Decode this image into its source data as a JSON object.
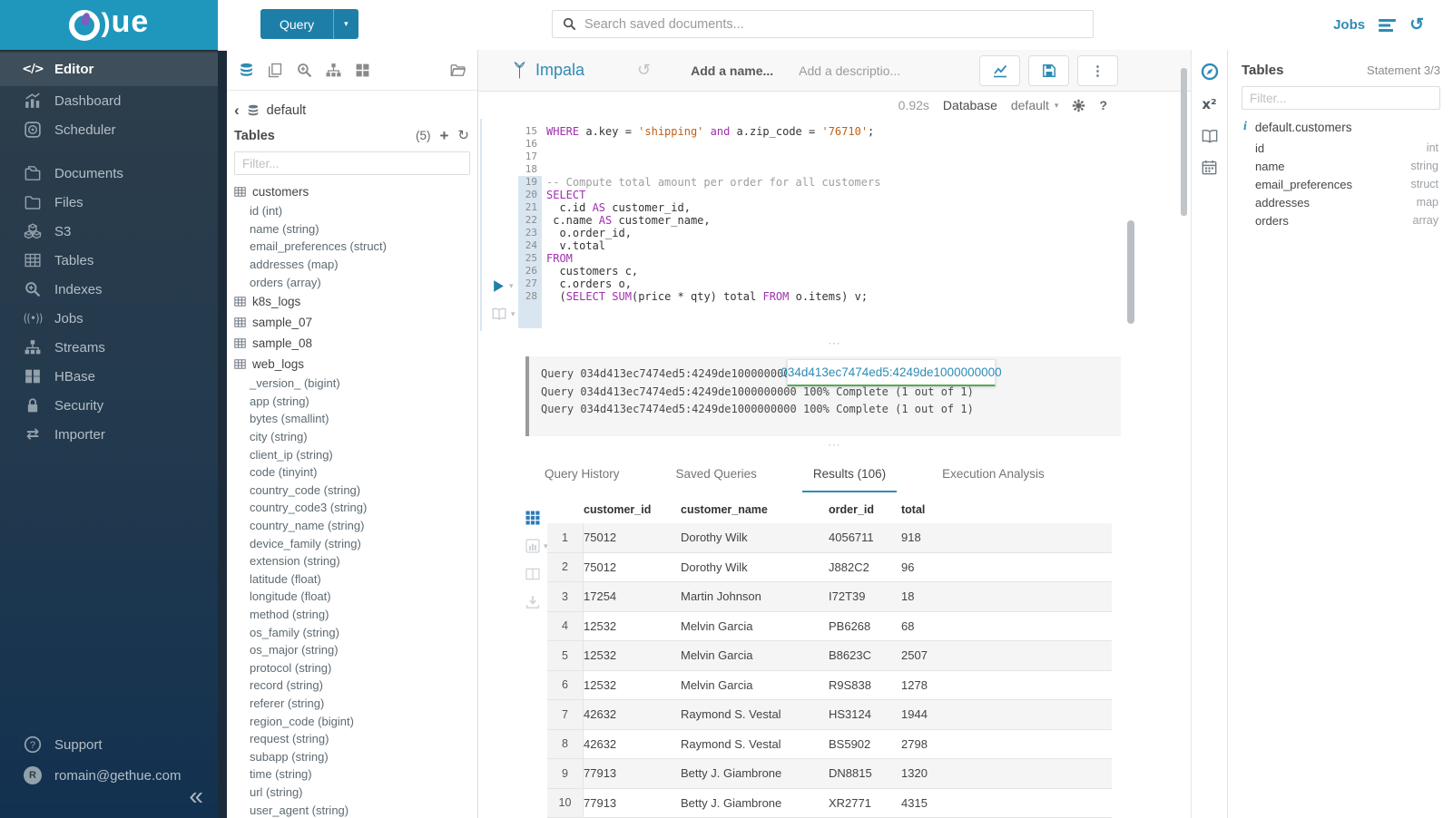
{
  "brand": {
    "band_color": "#1f97bd",
    "logo_text": "ue",
    "logo_paren": ")"
  },
  "sidebar": {
    "items": [
      {
        "label": "Editor",
        "icon": "code-icon",
        "active": true
      },
      {
        "label": "Dashboard",
        "icon": "dashboard-icon"
      },
      {
        "label": "Scheduler",
        "icon": "scheduler-icon",
        "gap_after": true
      },
      {
        "label": "Documents",
        "icon": "documents-icon"
      },
      {
        "label": "Files",
        "icon": "folder-icon"
      },
      {
        "label": "S3",
        "icon": "cubes-icon"
      },
      {
        "label": "Tables",
        "icon": "table-icon"
      },
      {
        "label": "Indexes",
        "icon": "search-plus-icon"
      },
      {
        "label": "Jobs",
        "icon": "broadcast-icon"
      },
      {
        "label": "Streams",
        "icon": "sitemap-icon"
      },
      {
        "label": "HBase",
        "icon": "blocks-icon"
      },
      {
        "label": "Security",
        "icon": "lock-icon"
      },
      {
        "label": "Importer",
        "icon": "transfer-icon"
      }
    ],
    "footer": [
      {
        "label": "Support",
        "icon": "help-icon"
      },
      {
        "label": "romain@gethue.com",
        "icon": "avatar",
        "avatar_letter": "R"
      }
    ],
    "collapse_glyph": "«"
  },
  "topbar": {
    "query_button": "Query",
    "query_caret": "▾",
    "search_placeholder": "Search saved documents...",
    "jobs_label": "Jobs",
    "history_glyph": "↺"
  },
  "left_assist": {
    "toolbar_icons": [
      "database-icon",
      "copy-icon",
      "zoom-plus-icon",
      "sitemap-icon",
      "grid-icon",
      "folder-open-icon"
    ],
    "back_glyph": "‹",
    "db_name": "default",
    "tables_header": "Tables",
    "tables_count": "(5)",
    "add_glyph": "+",
    "refresh_glyph": "↻",
    "filter_placeholder": "Filter...",
    "tree": [
      {
        "name": "customers",
        "kind": "table"
      },
      {
        "name": "id (int)",
        "kind": "column"
      },
      {
        "name": "name (string)",
        "kind": "column"
      },
      {
        "name": "email_preferences (struct)",
        "kind": "column"
      },
      {
        "name": "addresses (map)",
        "kind": "column"
      },
      {
        "name": "orders (array)",
        "kind": "column"
      },
      {
        "name": "k8s_logs",
        "kind": "table"
      },
      {
        "name": "sample_07",
        "kind": "table"
      },
      {
        "name": "sample_08",
        "kind": "table"
      },
      {
        "name": "web_logs",
        "kind": "table"
      },
      {
        "name": "_version_ (bigint)",
        "kind": "column"
      },
      {
        "name": "app (string)",
        "kind": "column"
      },
      {
        "name": "bytes (smallint)",
        "kind": "column"
      },
      {
        "name": "city (string)",
        "kind": "column"
      },
      {
        "name": "client_ip (string)",
        "kind": "column"
      },
      {
        "name": "code (tinyint)",
        "kind": "column"
      },
      {
        "name": "country_code (string)",
        "kind": "column"
      },
      {
        "name": "country_code3 (string)",
        "kind": "column"
      },
      {
        "name": "country_name (string)",
        "kind": "column"
      },
      {
        "name": "device_family (string)",
        "kind": "column"
      },
      {
        "name": "extension (string)",
        "kind": "column"
      },
      {
        "name": "latitude (float)",
        "kind": "column"
      },
      {
        "name": "longitude (float)",
        "kind": "column"
      },
      {
        "name": "method (string)",
        "kind": "column"
      },
      {
        "name": "os_family (string)",
        "kind": "column"
      },
      {
        "name": "os_major (string)",
        "kind": "column"
      },
      {
        "name": "protocol (string)",
        "kind": "column"
      },
      {
        "name": "record (string)",
        "kind": "column"
      },
      {
        "name": "referer (string)",
        "kind": "column"
      },
      {
        "name": "region_code (bigint)",
        "kind": "column"
      },
      {
        "name": "request (string)",
        "kind": "column"
      },
      {
        "name": "subapp (string)",
        "kind": "column"
      },
      {
        "name": "time (string)",
        "kind": "column"
      },
      {
        "name": "url (string)",
        "kind": "column"
      },
      {
        "name": "user_agent (string)",
        "kind": "column"
      }
    ]
  },
  "editor": {
    "engine": "Impala",
    "history_glyph": "↺",
    "name_placeholder": "Add a name...",
    "description_placeholder": "Add a descriptio...",
    "exec_time": "0.92s",
    "database_label": "Database",
    "database_value": "default",
    "db_caret": "▾",
    "help_glyph": "?",
    "kebab_glyph": "⋮",
    "grip_glyph": "⋯",
    "play_caret": "▾",
    "code": [
      {
        "n": "15",
        "hl": false,
        "seg": [
          [
            "k",
            "WHERE"
          ],
          [
            "t",
            " a.key = "
          ],
          [
            "s",
            "'shipping'"
          ],
          [
            "k",
            " and"
          ],
          [
            "t",
            " a.zip_code = "
          ],
          [
            "s",
            "'76710'"
          ],
          [
            "t",
            ";"
          ]
        ]
      },
      {
        "n": "16",
        "hl": false,
        "seg": []
      },
      {
        "n": "17",
        "hl": false,
        "seg": []
      },
      {
        "n": "18",
        "hl": false,
        "seg": []
      },
      {
        "n": "19",
        "hl": true,
        "seg": [
          [
            "c",
            "-- Compute total amount per order for all customers"
          ]
        ]
      },
      {
        "n": "20",
        "hl": true,
        "seg": [
          [
            "k",
            "SELECT"
          ]
        ]
      },
      {
        "n": "21",
        "hl": true,
        "seg": [
          [
            "t",
            "  c.id "
          ],
          [
            "k",
            "AS"
          ],
          [
            "t",
            " customer_id,"
          ]
        ]
      },
      {
        "n": "22",
        "hl": true,
        "seg": [
          [
            "t",
            " c.name "
          ],
          [
            "k",
            "AS"
          ],
          [
            "t",
            " customer_name,"
          ]
        ]
      },
      {
        "n": "23",
        "hl": true,
        "seg": [
          [
            "t",
            "  o.order_id,"
          ]
        ]
      },
      {
        "n": "24",
        "hl": true,
        "seg": [
          [
            "t",
            "  v.total"
          ]
        ]
      },
      {
        "n": "25",
        "hl": true,
        "seg": [
          [
            "k",
            "FROM"
          ]
        ]
      },
      {
        "n": "26",
        "hl": true,
        "seg": [
          [
            "t",
            "  customers c,"
          ]
        ]
      },
      {
        "n": "27",
        "hl": true,
        "seg": [
          [
            "t",
            "  c.orders o,"
          ]
        ]
      },
      {
        "n": "28",
        "hl": true,
        "seg": [
          [
            "t",
            "  ("
          ],
          [
            "k",
            "SELECT"
          ],
          [
            "t",
            " "
          ],
          [
            "k",
            "SUM"
          ],
          [
            "t",
            "(price * qty) total "
          ],
          [
            "k",
            "FROM"
          ],
          [
            "t",
            " o.items) v;"
          ]
        ]
      },
      {
        "n": "",
        "hl": true,
        "seg": []
      },
      {
        "n": "",
        "hl": true,
        "seg": []
      }
    ]
  },
  "log": {
    "lines": [
      "Query 034d413ec7474ed5:4249de1000000000 100% Complete (1 out of 1)",
      "Query 034d413ec7474ed5:4249de1000000000 100% Complete (1 out of 1)",
      "Query 034d413ec7474ed5:4249de1000000000 100% Complete (1 out of 1)"
    ],
    "popup_text": "034d413ec7474ed5:4249de1000000000"
  },
  "result_tabs": {
    "tabs": [
      "Query History",
      "Saved Queries",
      "Results (106)",
      "Execution Analysis"
    ],
    "active_index": 2
  },
  "results": {
    "side_icons": [
      "grid9-icon",
      "mini-chart-icon",
      "columns-icon",
      "download-icon"
    ],
    "columns": [
      "customer_id",
      "customer_name",
      "order_id",
      "total"
    ],
    "rows": [
      [
        "1",
        "75012",
        "Dorothy Wilk",
        "4056711",
        "918"
      ],
      [
        "2",
        "75012",
        "Dorothy Wilk",
        "J882C2",
        "96"
      ],
      [
        "3",
        "17254",
        "Martin Johnson",
        "I72T39",
        "18"
      ],
      [
        "4",
        "12532",
        "Melvin Garcia",
        "PB6268",
        "68"
      ],
      [
        "5",
        "12532",
        "Melvin Garcia",
        "B8623C",
        "2507"
      ],
      [
        "6",
        "12532",
        "Melvin Garcia",
        "R9S838",
        "1278"
      ],
      [
        "7",
        "42632",
        "Raymond S. Vestal",
        "HS3124",
        "1944"
      ],
      [
        "8",
        "42632",
        "Raymond S. Vestal",
        "BS5902",
        "2798"
      ],
      [
        "9",
        "77913",
        "Betty J. Giambrone",
        "DN8815",
        "1320"
      ],
      [
        "10",
        "77913",
        "Betty J. Giambrone",
        "XR2771",
        "4315"
      ]
    ]
  },
  "right_assist": {
    "strip_icons": [
      "compass-icon",
      "superscript-icon",
      "book-icon",
      "calendar-icon"
    ],
    "title": "Tables",
    "statement": "Statement 3/3",
    "filter_placeholder": "Filter...",
    "table_name": "default.customers",
    "info_glyph": "i",
    "columns": [
      {
        "name": "id",
        "type": "int"
      },
      {
        "name": "name",
        "type": "string"
      },
      {
        "name": "email_preferences",
        "type": "struct"
      },
      {
        "name": "addresses",
        "type": "map"
      },
      {
        "name": "orders",
        "type": "array"
      }
    ]
  },
  "colors": {
    "accent_blue": "#2f8bb4",
    "button_blue": "#1d7fa8",
    "keyword": "#a12fae",
    "string": "#c06014",
    "popup_underline_green": "#57a85c"
  }
}
